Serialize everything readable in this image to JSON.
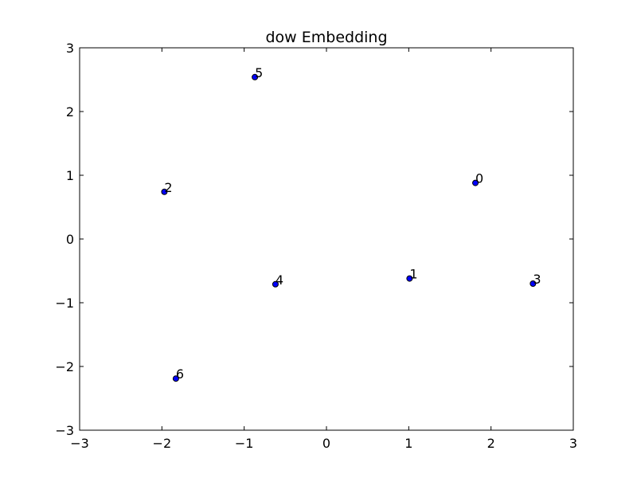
{
  "chart_data": {
    "type": "scatter",
    "title": "dow Embedding",
    "xlabel": "",
    "ylabel": "",
    "xlim": [
      -3,
      3
    ],
    "ylim": [
      -3,
      3
    ],
    "grid": false,
    "x_ticks": [
      -3,
      -2,
      -1,
      0,
      1,
      2,
      3
    ],
    "y_ticks": [
      -3,
      -2,
      -1,
      0,
      1,
      2,
      3
    ],
    "x_tick_labels": [
      "−3",
      "−2",
      "−1",
      "0",
      "1",
      "2",
      "3"
    ],
    "y_tick_labels": [
      "−3",
      "−2",
      "−1",
      "0",
      "1",
      "2",
      "3"
    ],
    "point_color": "#0000ff",
    "points": [
      {
        "label": "0",
        "x": 1.81,
        "y": 0.88
      },
      {
        "label": "1",
        "x": 1.01,
        "y": -0.62
      },
      {
        "label": "2",
        "x": -1.97,
        "y": 0.74
      },
      {
        "label": "3",
        "x": 2.51,
        "y": -0.7
      },
      {
        "label": "4",
        "x": -0.62,
        "y": -0.71
      },
      {
        "label": "5",
        "x": -0.87,
        "y": 2.54
      },
      {
        "label": "6",
        "x": -1.83,
        "y": -2.19
      }
    ]
  }
}
